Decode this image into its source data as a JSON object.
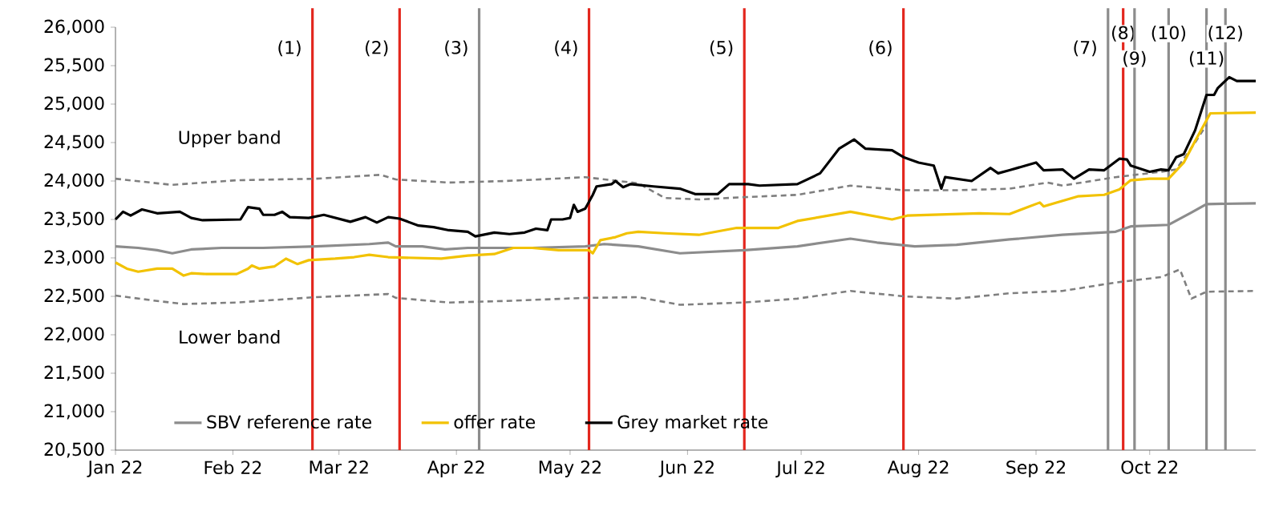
{
  "chart_data": {
    "type": "line",
    "xlim": [
      "2022-01-01",
      "2022-10-29"
    ],
    "xticks": [
      {
        "value": "2022-01-01",
        "label": "Jan 22"
      },
      {
        "value": "2022-02-01",
        "label": "Feb 22"
      },
      {
        "value": "2022-03-01",
        "label": "Mar 22"
      },
      {
        "value": "2022-04-01",
        "label": "Apr 22"
      },
      {
        "value": "2022-05-01",
        "label": "May 22"
      },
      {
        "value": "2022-06-01",
        "label": "Jun 22"
      },
      {
        "value": "2022-07-01",
        "label": "Jul 22"
      },
      {
        "value": "2022-08-01",
        "label": "Aug 22"
      },
      {
        "value": "2022-09-01",
        "label": "Sep 22"
      },
      {
        "value": "2022-10-01",
        "label": "Oct 22"
      }
    ],
    "ylim": [
      20500,
      26000
    ],
    "yticks": [
      {
        "value": 20500,
        "label": "20,500"
      },
      {
        "value": 21000,
        "label": "21,000"
      },
      {
        "value": 21500,
        "label": "21,500"
      },
      {
        "value": 22000,
        "label": "22,000"
      },
      {
        "value": 22500,
        "label": "22,500"
      },
      {
        "value": 23000,
        "label": "23,000"
      },
      {
        "value": 23500,
        "label": "23,500"
      },
      {
        "value": 24000,
        "label": "24,000"
      },
      {
        "value": 24500,
        "label": "24,500"
      },
      {
        "value": 25000,
        "label": "25,000"
      },
      {
        "value": 25500,
        "label": "25,500"
      },
      {
        "value": 26000,
        "label": "26,000"
      }
    ],
    "legend": "bottom",
    "series": [
      {
        "name": "Upper band",
        "color": "#7f7f7f",
        "line_style": "dashed",
        "x": [
          "2022-01-01",
          "2022-01-12",
          "2022-01-16",
          "2022-02-02",
          "2022-02-23",
          "2022-03-12",
          "2022-03-16",
          "2022-03-30",
          "2022-04-14",
          "2022-05-05",
          "2022-05-19",
          "2022-05-26",
          "2022-06-04",
          "2022-06-16",
          "2022-06-30",
          "2022-07-14",
          "2022-07-28",
          "2022-08-11",
          "2022-08-25",
          "2022-09-04",
          "2022-09-08",
          "2022-09-22",
          "2022-10-04",
          "2022-10-08",
          "2022-10-13",
          "2022-10-16"
        ],
        "values": [
          24030,
          23970,
          23950,
          24010,
          24030,
          24080,
          24020,
          23980,
          24000,
          24050,
          23970,
          23780,
          23760,
          23790,
          23820,
          23940,
          23880,
          23880,
          23900,
          23980,
          23940,
          24050,
          24120,
          24150,
          24500,
          24730
        ]
      },
      {
        "name": "Lower band",
        "color": "#7f7f7f",
        "line_style": "dashed",
        "x": [
          "2022-01-01",
          "2022-01-12",
          "2022-01-19",
          "2022-02-02",
          "2022-02-23",
          "2022-03-14",
          "2022-03-16",
          "2022-03-30",
          "2022-04-14",
          "2022-05-05",
          "2022-05-19",
          "2022-05-30",
          "2022-06-16",
          "2022-06-30",
          "2022-07-14",
          "2022-07-28",
          "2022-08-11",
          "2022-08-25",
          "2022-09-08",
          "2022-09-22",
          "2022-10-04",
          "2022-10-09",
          "2022-10-12",
          "2022-10-16",
          "2022-10-29"
        ],
        "values": [
          22510,
          22440,
          22400,
          22420,
          22490,
          22530,
          22480,
          22420,
          22440,
          22480,
          22490,
          22390,
          22420,
          22470,
          22570,
          22500,
          22470,
          22540,
          22570,
          22680,
          22750,
          22850,
          22470,
          22560,
          22570
        ]
      },
      {
        "name": "SBV reference rate",
        "color": "#8c8c8c",
        "line_style": "solid",
        "x": [
          "2022-01-01",
          "2022-01-07",
          "2022-01-12",
          "2022-01-16",
          "2022-01-21",
          "2022-01-29",
          "2022-02-09",
          "2022-02-23",
          "2022-03-09",
          "2022-03-14",
          "2022-03-16",
          "2022-03-23",
          "2022-03-29",
          "2022-04-04",
          "2022-04-21",
          "2022-05-05",
          "2022-05-10",
          "2022-05-19",
          "2022-05-30",
          "2022-06-16",
          "2022-06-30",
          "2022-07-14",
          "2022-07-21",
          "2022-07-31",
          "2022-08-11",
          "2022-08-25",
          "2022-09-08",
          "2022-09-22",
          "2022-09-26",
          "2022-10-06",
          "2022-10-12",
          "2022-10-16",
          "2022-10-29"
        ],
        "values": [
          23150,
          23130,
          23100,
          23060,
          23110,
          23130,
          23130,
          23150,
          23180,
          23200,
          23150,
          23150,
          23110,
          23130,
          23130,
          23150,
          23180,
          23150,
          23060,
          23100,
          23150,
          23250,
          23200,
          23150,
          23170,
          23240,
          23300,
          23340,
          23410,
          23430,
          23590,
          23700,
          23710
        ]
      },
      {
        "name": "offer rate",
        "color": "#f2c200",
        "line_style": "solid",
        "x": [
          "2022-01-01",
          "2022-01-04",
          "2022-01-07",
          "2022-01-12",
          "2022-01-16",
          "2022-01-19",
          "2022-01-21",
          "2022-01-25",
          "2022-02-02",
          "2022-02-05",
          "2022-02-06",
          "2022-02-08",
          "2022-02-12",
          "2022-02-15",
          "2022-02-18",
          "2022-02-21",
          "2022-02-28",
          "2022-03-05",
          "2022-03-09",
          "2022-03-14",
          "2022-03-28",
          "2022-04-04",
          "2022-04-11",
          "2022-04-16",
          "2022-04-21",
          "2022-04-28",
          "2022-05-06",
          "2022-05-07",
          "2022-05-09",
          "2022-05-13",
          "2022-05-16",
          "2022-05-19",
          "2022-05-26",
          "2022-06-04",
          "2022-06-14",
          "2022-06-25",
          "2022-06-30",
          "2022-07-14",
          "2022-07-25",
          "2022-07-29",
          "2022-08-17",
          "2022-08-25",
          "2022-09-02",
          "2022-09-03",
          "2022-09-12",
          "2022-09-19",
          "2022-09-23",
          "2022-09-26",
          "2022-10-01",
          "2022-10-06",
          "2022-10-10",
          "2022-10-13",
          "2022-10-17",
          "2022-10-29"
        ],
        "values": [
          22940,
          22860,
          22820,
          22860,
          22860,
          22770,
          22800,
          22790,
          22790,
          22860,
          22900,
          22860,
          22890,
          22990,
          22920,
          22970,
          22990,
          23010,
          23040,
          23010,
          22990,
          23030,
          23050,
          23130,
          23130,
          23100,
          23100,
          23060,
          23230,
          23270,
          23320,
          23340,
          23320,
          23300,
          23390,
          23390,
          23480,
          23600,
          23500,
          23550,
          23580,
          23570,
          23720,
          23670,
          23800,
          23820,
          23890,
          24010,
          24030,
          24030,
          24240,
          24520,
          24880,
          24890
        ]
      },
      {
        "name": "Grey market rate",
        "color": "#000000",
        "line_style": "solid",
        "x": [
          "2022-01-01",
          "2022-01-03",
          "2022-01-05",
          "2022-01-08",
          "2022-01-12",
          "2022-01-18",
          "2022-01-21",
          "2022-01-24",
          "2022-02-03",
          "2022-02-05",
          "2022-02-08",
          "2022-02-09",
          "2022-02-12",
          "2022-02-14",
          "2022-02-16",
          "2022-02-21",
          "2022-02-25",
          "2022-03-04",
          "2022-03-08",
          "2022-03-11",
          "2022-03-14",
          "2022-03-17",
          "2022-03-22",
          "2022-03-26",
          "2022-03-30",
          "2022-04-04",
          "2022-04-06",
          "2022-04-11",
          "2022-04-15",
          "2022-04-19",
          "2022-04-22",
          "2022-04-25",
          "2022-04-26",
          "2022-04-29",
          "2022-05-01",
          "2022-05-02",
          "2022-05-03",
          "2022-05-05",
          "2022-05-07",
          "2022-05-08",
          "2022-05-12",
          "2022-05-13",
          "2022-05-15",
          "2022-05-17",
          "2022-05-19",
          "2022-05-23",
          "2022-05-30",
          "2022-06-03",
          "2022-06-09",
          "2022-06-12",
          "2022-06-17",
          "2022-06-20",
          "2022-06-30",
          "2022-07-06",
          "2022-07-11",
          "2022-07-15",
          "2022-07-18",
          "2022-07-25",
          "2022-07-28",
          "2022-08-01",
          "2022-08-05",
          "2022-08-07",
          "2022-08-08",
          "2022-08-15",
          "2022-08-20",
          "2022-08-22",
          "2022-08-25",
          "2022-09-01",
          "2022-09-03",
          "2022-09-08",
          "2022-09-11",
          "2022-09-15",
          "2022-09-19",
          "2022-09-23",
          "2022-09-25",
          "2022-09-26",
          "2022-10-01",
          "2022-10-04",
          "2022-10-06",
          "2022-10-08",
          "2022-10-10",
          "2022-10-13",
          "2022-10-16",
          "2022-10-18",
          "2022-10-19",
          "2022-10-22",
          "2022-10-24",
          "2022-10-29"
        ],
        "values": [
          23500,
          23600,
          23550,
          23630,
          23580,
          23600,
          23520,
          23490,
          23500,
          23660,
          23640,
          23560,
          23560,
          23600,
          23530,
          23520,
          23560,
          23470,
          23530,
          23460,
          23530,
          23510,
          23420,
          23400,
          23360,
          23340,
          23280,
          23330,
          23310,
          23330,
          23380,
          23360,
          23500,
          23500,
          23520,
          23690,
          23600,
          23640,
          23820,
          23930,
          23960,
          24000,
          23920,
          23960,
          23950,
          23930,
          23900,
          23830,
          23830,
          23960,
          23960,
          23940,
          23960,
          24100,
          24420,
          24540,
          24420,
          24400,
          24310,
          24240,
          24200,
          23900,
          24050,
          24000,
          24170,
          24100,
          24140,
          24240,
          24140,
          24150,
          24030,
          24150,
          24140,
          24290,
          24280,
          24200,
          24120,
          24150,
          24140,
          24310,
          24350,
          24660,
          25120,
          25120,
          25210,
          25350,
          25300,
          25300
        ]
      }
    ],
    "ref_lines": [
      {
        "axis": "x",
        "value": "2022-02-22",
        "color": "#e3261d",
        "label": "(1)"
      },
      {
        "axis": "x",
        "value": "2022-03-17",
        "color": "#e3261d",
        "label": "(2)"
      },
      {
        "axis": "x",
        "value": "2022-04-07",
        "color": "#8c8c8c",
        "label": "(3)"
      },
      {
        "axis": "x",
        "value": "2022-05-06",
        "color": "#e3261d",
        "label": "(4)"
      },
      {
        "axis": "x",
        "value": "2022-06-16",
        "color": "#e3261d",
        "label": "(5)"
      },
      {
        "axis": "x",
        "value": "2022-07-28",
        "color": "#e3261d",
        "label": "(6)"
      },
      {
        "axis": "x",
        "value": "2022-09-20",
        "color": "#8c8c8c",
        "label": "(7)"
      },
      {
        "axis": "x",
        "value": "2022-09-24",
        "color": "#e3261d",
        "label": "(8)"
      },
      {
        "axis": "x",
        "value": "2022-09-27",
        "color": "#8c8c8c",
        "label": "(9)"
      },
      {
        "axis": "x",
        "value": "2022-10-06",
        "color": "#8c8c8c",
        "label": "(10)"
      },
      {
        "axis": "x",
        "value": "2022-10-16",
        "color": "#8c8c8c",
        "label": "(11)"
      },
      {
        "axis": "x",
        "value": "2022-10-21",
        "color": "#8c8c8c",
        "label": "(12)"
      }
    ]
  }
}
